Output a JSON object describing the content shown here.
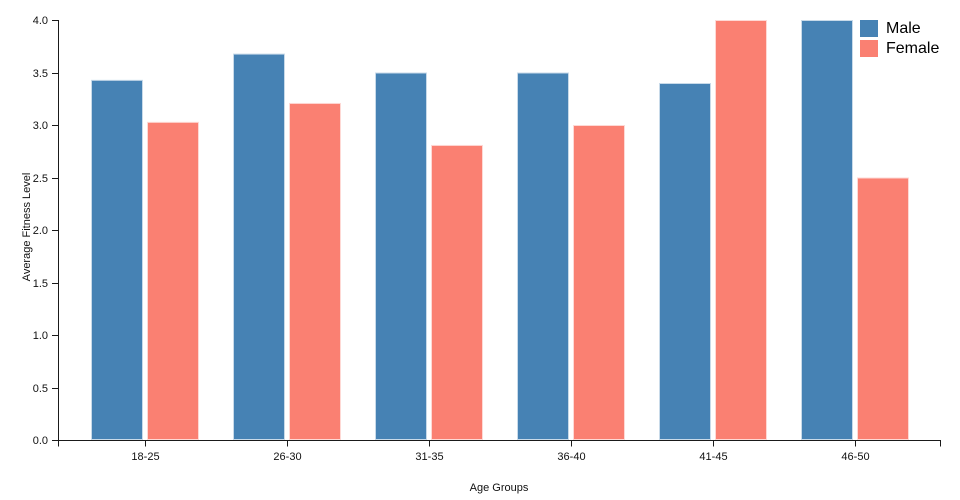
{
  "chart_data": {
    "type": "bar",
    "title": "",
    "categories": [
      "18-25",
      "26-30",
      "31-35",
      "36-40",
      "41-45",
      "46-50"
    ],
    "series": [
      {
        "name": "Male",
        "color": "#4682B4",
        "values": [
          3.43,
          3.68,
          3.5,
          3.5,
          3.4,
          4.0
        ]
      },
      {
        "name": "Female",
        "color": "#FA8072",
        "values": [
          3.03,
          3.21,
          2.81,
          3.0,
          4.0,
          2.5
        ]
      }
    ],
    "xlabel": "Age Groups",
    "ylabel": "Average Fitness Level",
    "ylim": [
      0.0,
      4.0
    ],
    "ytick_step": 0.5,
    "ytick_labels": [
      "0.0",
      "0.5",
      "1.0",
      "1.5",
      "2.0",
      "2.5",
      "3.0",
      "3.5",
      "4.0"
    ],
    "grid": false,
    "legend": {
      "position": "top-right",
      "entries": [
        "Male",
        "Female"
      ]
    },
    "axis_color": "#1a1a1a",
    "tick_label_color": "#111111"
  }
}
